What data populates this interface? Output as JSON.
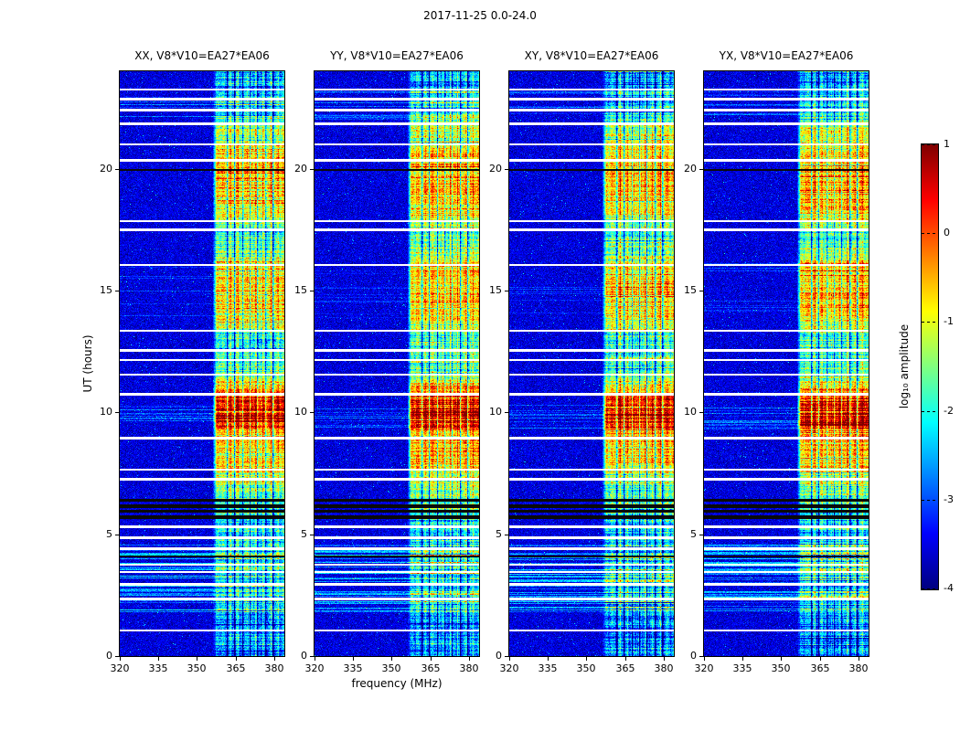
{
  "figure": {
    "title": "2017-11-25 0.0-24.0"
  },
  "chart_data": {
    "type": "heatmap",
    "xlabel": "frequency (MHz)",
    "ylabel": "UT (hours)",
    "xlim": [
      320,
      384
    ],
    "ylim": [
      0,
      24
    ],
    "x_ticks": [
      320,
      335,
      350,
      365,
      380
    ],
    "y_ticks": [
      0,
      5,
      10,
      15,
      20
    ],
    "panels": [
      {
        "title": "XX, V8*V10=EA27*EA06",
        "offset": 0.0,
        "seed": 101
      },
      {
        "title": "YY, V8*V10=EA27*EA06",
        "offset": 0.1,
        "seed": 202
      },
      {
        "title": "XY, V8*V10=EA27*EA06",
        "offset": -0.05,
        "seed": 303
      },
      {
        "title": "YX, V8*V10=EA27*EA06",
        "offset": 0.04,
        "seed": 404
      }
    ],
    "colorbar": {
      "label": "log₁₀ amplitude",
      "ticks": [
        1,
        0,
        -1,
        -2,
        -3,
        -4
      ],
      "vmin": -4,
      "vmax": 1
    },
    "features": {
      "background_level": -3.55,
      "band_start_mhz": 356.5,
      "band_profile": [
        [
          0,
          -2.7
        ],
        [
          1.4,
          -2.7
        ],
        [
          1.8,
          -2.5
        ],
        [
          4.4,
          -2.4
        ],
        [
          5.6,
          -2.2
        ],
        [
          6.0,
          -2.05
        ],
        [
          6.6,
          -1.65
        ],
        [
          7.4,
          -1.25
        ],
        [
          7.8,
          -0.75
        ],
        [
          9.2,
          -0.5
        ],
        [
          9.5,
          0.25
        ],
        [
          10.55,
          0.25
        ],
        [
          11.0,
          -0.6
        ],
        [
          11.6,
          -1.7
        ],
        [
          13.2,
          -1.8
        ],
        [
          13.6,
          -1.0
        ],
        [
          14.2,
          -0.8
        ],
        [
          16.0,
          -0.8
        ],
        [
          16.6,
          -1.6
        ],
        [
          17.4,
          -1.85
        ],
        [
          18.0,
          -1.1
        ],
        [
          18.6,
          -0.65
        ],
        [
          20.2,
          -0.55
        ],
        [
          20.8,
          -0.85
        ],
        [
          21.1,
          -1.2
        ],
        [
          21.8,
          -1.3
        ],
        [
          22.2,
          -2.3
        ],
        [
          24,
          -2.6
        ]
      ],
      "white_rows": [
        1.05,
        2.35,
        2.95,
        3.45,
        3.75,
        4.4,
        4.85,
        5.3,
        7.25,
        7.65,
        8.95,
        10.75,
        11.55,
        12.15,
        12.55,
        13.35,
        16.05,
        17.5,
        17.85,
        20.35,
        21.0,
        21.85,
        22.4,
        22.85,
        23.25
      ],
      "black_rows": [
        [
          4.1,
          0.04
        ],
        [
          5.7,
          0.08
        ],
        [
          5.94,
          0.06
        ],
        [
          6.16,
          0.08
        ],
        [
          6.38,
          0.06
        ],
        [
          19.95,
          0.04
        ]
      ],
      "streak_ranges": [
        [
          1.8,
          4.6,
          0.45,
          0.9
        ],
        [
          9.3,
          10.3,
          0.3,
          0.55
        ],
        [
          13.8,
          16.2,
          0.15,
          0.35
        ],
        [
          22.0,
          23.3,
          0.3,
          0.55
        ]
      ],
      "dark_channels_mhz": [
        361.5,
        364.5,
        367.5,
        370.5,
        373.5,
        376.5,
        379.5
      ],
      "bright_channels_mhz": [
        363,
        366,
        369.5,
        372.5,
        375.5,
        378.5,
        381.5
      ]
    }
  }
}
